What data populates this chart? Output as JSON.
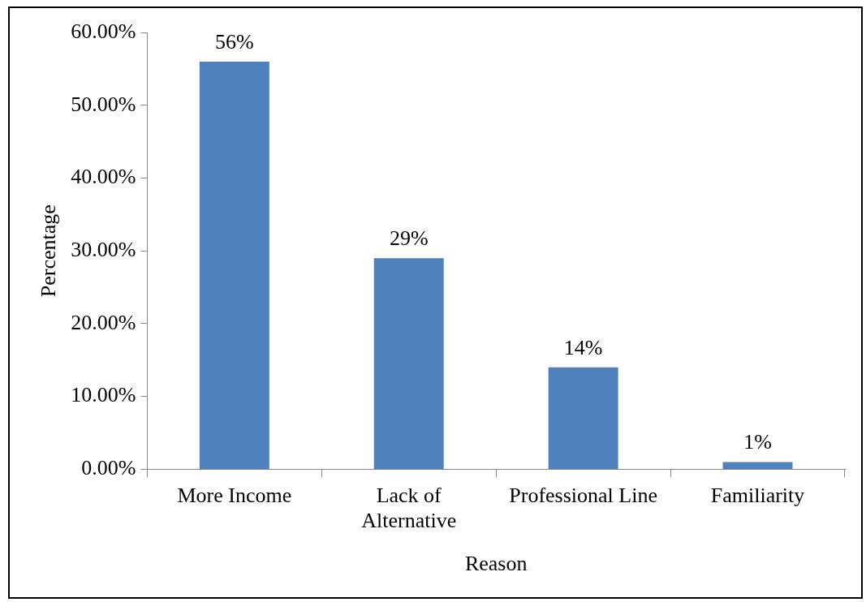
{
  "chart_data": {
    "type": "bar",
    "xlabel": "Reason",
    "ylabel": "Percentage",
    "categories": [
      "More Income",
      "Lack of Alternative",
      "Professional Line",
      "Familiarity"
    ],
    "values": [
      56,
      29,
      14,
      1
    ],
    "color": "#4f81bd",
    "value_labels": [
      "56%",
      "29%",
      "14%",
      "1%"
    ],
    "ylim": [
      0,
      60
    ],
    "yticks": [
      {
        "value": 0,
        "label": "0.00%"
      },
      {
        "value": 10,
        "label": "10.00%"
      },
      {
        "value": 20,
        "label": "20.00%"
      },
      {
        "value": 30,
        "label": "30.00%"
      },
      {
        "value": 40,
        "label": "40.00%"
      },
      {
        "value": 50,
        "label": "50.00%"
      },
      {
        "value": 60,
        "label": "60.00%"
      }
    ],
    "grid": false,
    "legend": false
  }
}
